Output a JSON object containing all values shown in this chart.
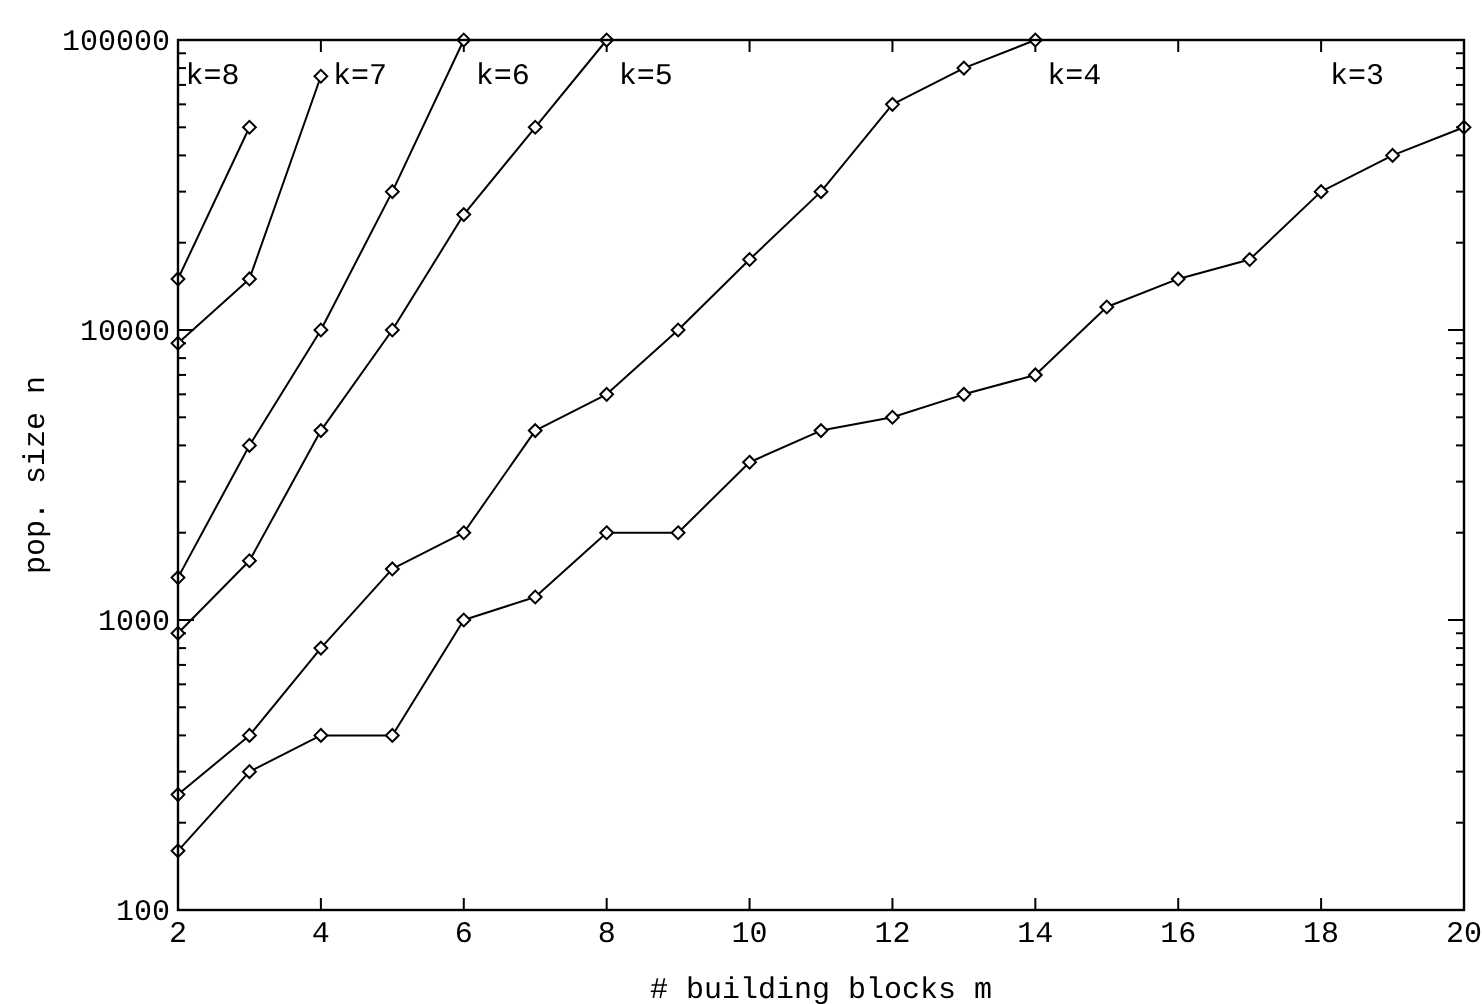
{
  "chart_data": {
    "type": "line",
    "xlabel": "# building blocks m",
    "ylabel": "pop. size n",
    "log": "y",
    "marker": "diamond",
    "grid": false,
    "legend": "top",
    "xlim": [
      2,
      20
    ],
    "xticks": [
      2,
      4,
      6,
      8,
      10,
      12,
      14,
      16,
      18,
      20
    ],
    "ylim": [
      100,
      100000
    ],
    "yticks": [
      100,
      {
        "value": 200,
        "label": null
      },
      {
        "value": 300,
        "label": null
      },
      {
        "value": 400,
        "label": null
      },
      {
        "value": 500,
        "label": null
      },
      {
        "value": 600,
        "label": null
      },
      {
        "value": 700,
        "label": null
      },
      {
        "value": 800,
        "label": null
      },
      {
        "value": 900,
        "label": null
      },
      1000,
      {
        "value": 2000,
        "label": null
      },
      {
        "value": 3000,
        "label": null
      },
      {
        "value": 4000,
        "label": null
      },
      {
        "value": 5000,
        "label": null
      },
      {
        "value": 6000,
        "label": null
      },
      {
        "value": 7000,
        "label": null
      },
      {
        "value": 8000,
        "label": null
      },
      {
        "value": 9000,
        "label": null
      },
      10000,
      {
        "value": 20000,
        "label": null
      },
      {
        "value": 30000,
        "label": null
      },
      {
        "value": 40000,
        "label": null
      },
      {
        "value": 50000,
        "label": null
      },
      {
        "value": 60000,
        "label": null
      },
      {
        "value": 70000,
        "label": null
      },
      {
        "value": 80000,
        "label": null
      },
      {
        "value": 90000,
        "label": null
      },
      100000
    ],
    "series": [
      {
        "name": "k=8",
        "color": "#000000",
        "x": [
          2,
          3
        ],
        "values": [
          15000,
          50000
        ]
      },
      {
        "name": "k=7",
        "color": "#000000",
        "x": [
          2,
          3,
          4
        ],
        "values": [
          9000,
          15000,
          75000
        ]
      },
      {
        "name": "k=6",
        "color": "#000000",
        "x": [
          2,
          3,
          4,
          5,
          6
        ],
        "values": [
          1400,
          4000,
          10000,
          30000,
          100000
        ]
      },
      {
        "name": "k=5",
        "color": "#000000",
        "x": [
          2,
          3,
          4,
          5,
          6,
          7,
          8
        ],
        "values": [
          900,
          1600,
          4500,
          10000,
          25000,
          50000,
          100000
        ]
      },
      {
        "name": "k=4",
        "color": "#000000",
        "x": [
          2,
          3,
          4,
          5,
          6,
          7,
          8,
          9,
          10,
          11,
          12,
          13,
          14
        ],
        "values": [
          250,
          400,
          800,
          1500,
          2000,
          4500,
          6000,
          10000,
          17500,
          30000,
          60000,
          80000,
          100000
        ]
      },
      {
        "name": "k=3",
        "color": "#000000",
        "x": [
          2,
          3,
          4,
          5,
          6,
          7,
          8,
          9,
          10,
          11,
          12,
          13,
          14,
          15,
          16,
          17,
          18,
          19,
          20
        ],
        "values": [
          160,
          300,
          400,
          400,
          1000,
          1200,
          2000,
          2000,
          3500,
          4500,
          5000,
          6000,
          7000,
          12000,
          15000,
          17500,
          30000,
          40000,
          50000
        ]
      }
    ]
  }
}
